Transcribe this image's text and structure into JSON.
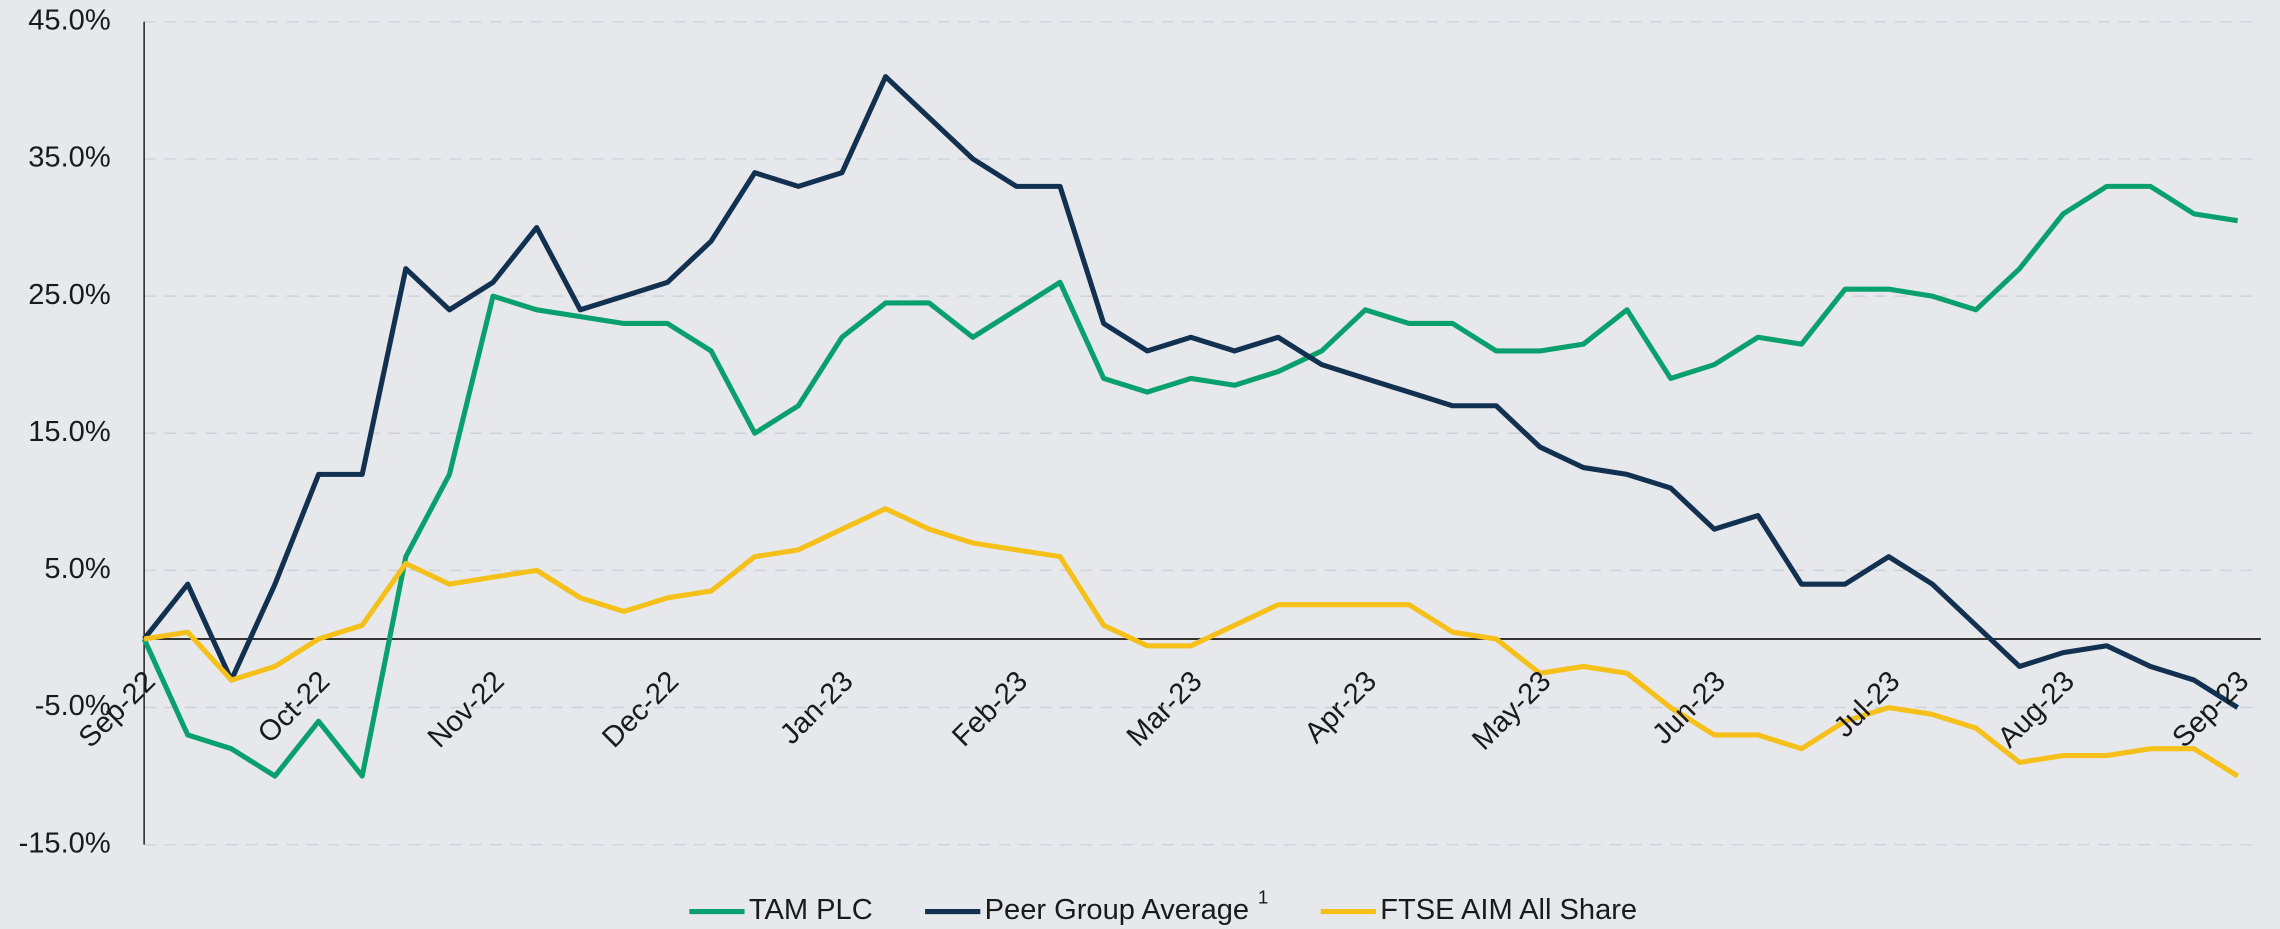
{
  "chart_data": {
    "type": "line",
    "categories": [
      "Sep-22",
      null,
      null,
      null,
      "Oct-22",
      null,
      null,
      null,
      "Nov-22",
      null,
      null,
      null,
      "Dec-22",
      null,
      null,
      null,
      "Jan-23",
      null,
      null,
      null,
      "Feb-23",
      null,
      null,
      null,
      "Mar-23",
      null,
      null,
      null,
      "Apr-23",
      null,
      null,
      null,
      "May-23",
      null,
      null,
      null,
      "Jun-23",
      null,
      null,
      null,
      "Jul-23",
      null,
      null,
      null,
      "Aug-23",
      null,
      null,
      null,
      "Sep-23"
    ],
    "series": [
      {
        "name": "TAM PLC",
        "color": "#0aa06e",
        "values": [
          0,
          -7,
          -8,
          -10,
          -6,
          -10,
          6,
          12,
          25,
          24,
          23.5,
          23,
          23,
          21,
          15,
          17,
          22,
          24.5,
          24.5,
          22,
          24,
          26,
          19,
          18,
          19,
          18.5,
          19.5,
          21,
          24,
          23,
          23,
          21,
          21,
          21.5,
          24,
          19,
          20,
          22,
          21.5,
          25.5,
          25.5,
          25,
          24,
          27,
          31,
          33,
          33,
          31,
          30.5
        ]
      },
      {
        "name": "Peer Group Average",
        "superscript": "1",
        "color": "#12304f",
        "values": [
          0,
          4,
          -3,
          4,
          12,
          12,
          27,
          24,
          26,
          30,
          24,
          25,
          26,
          29,
          34,
          33,
          34,
          41,
          38,
          35,
          33,
          33,
          23,
          21,
          22,
          21,
          22,
          20,
          19,
          18,
          17,
          17,
          14,
          12.5,
          12,
          11,
          8,
          9,
          4,
          4,
          6,
          4,
          1,
          -2,
          -1,
          -0.5,
          -2,
          -3,
          -5
        ]
      },
      {
        "name": "FTSE AIM All Share",
        "color": "#f5c01a",
        "values": [
          0,
          0.5,
          -3,
          -2,
          0,
          1,
          5.5,
          4,
          4.5,
          5,
          3,
          2,
          3,
          3.5,
          6,
          6.5,
          8,
          9.5,
          8,
          7,
          6.5,
          6,
          1,
          -0.5,
          -0.5,
          1,
          2.5,
          2.5,
          2.5,
          2.5,
          0.5,
          0,
          -2.5,
          -2,
          -2.5,
          -5,
          -7,
          -7,
          -8,
          -6,
          -5,
          -5.5,
          -6.5,
          -9,
          -8.5,
          -8.5,
          -8,
          -8,
          -10
        ]
      }
    ],
    "ylim": [
      -15,
      45
    ],
    "yticks": [
      {
        "value": -15,
        "label": "-15.0%"
      },
      {
        "value": -5,
        "label": "-5.0%"
      },
      {
        "value": 5,
        "label": "5.0%"
      },
      {
        "value": 15,
        "label": "15.0%"
      },
      {
        "value": 25,
        "label": "25.0%"
      },
      {
        "value": 35,
        "label": "35.0%"
      },
      {
        "value": 45,
        "label": "45.0%"
      }
    ],
    "grid": true,
    "legend": "bottom"
  }
}
